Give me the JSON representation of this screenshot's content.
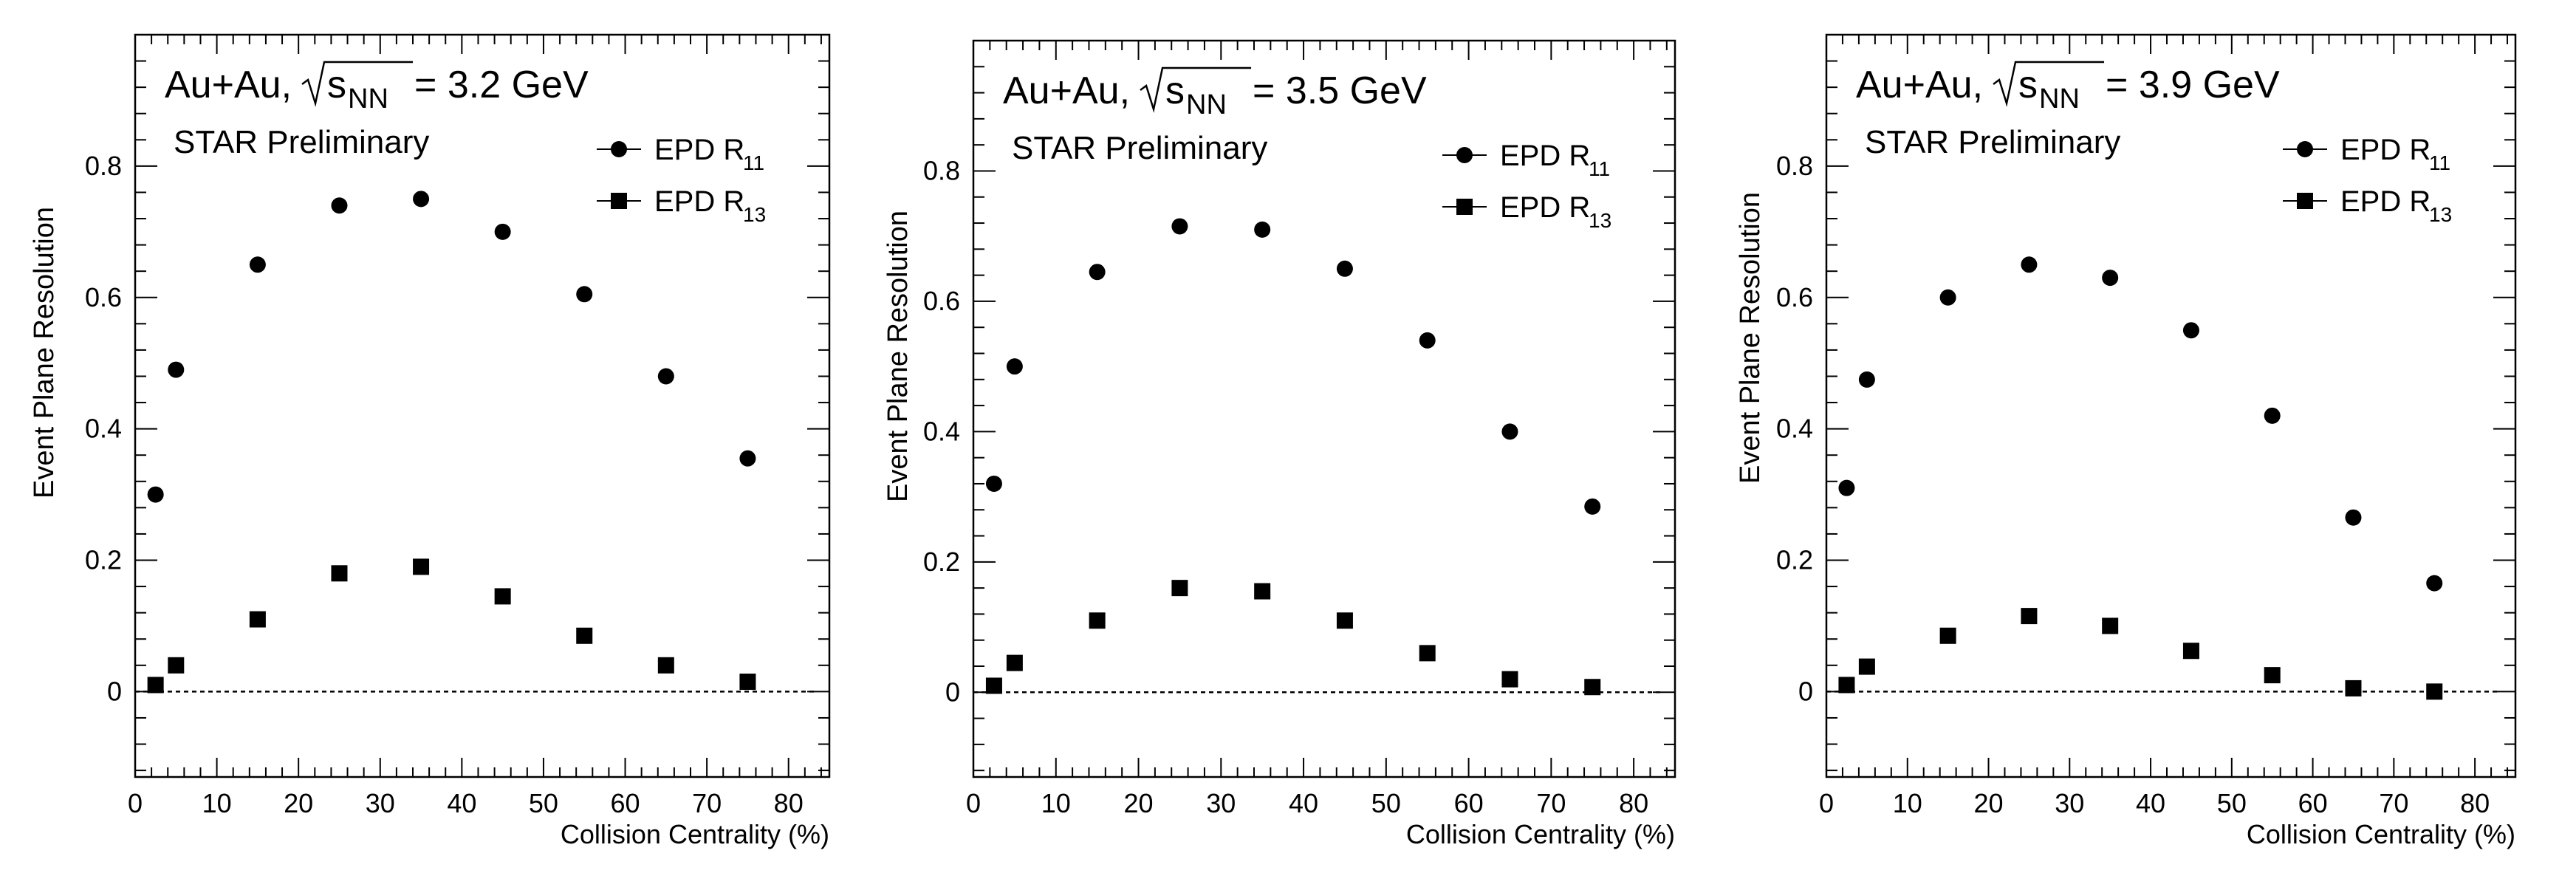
{
  "chart_data": [
    {
      "type": "scatter",
      "system": "Au+Au,",
      "energy_label": "= 3.2 GeV",
      "subtitle": "STAR Preliminary",
      "xlabel": "Collision Centrality (%)",
      "ylabel": "Event Plane Resolution",
      "xlim": [
        0,
        85
      ],
      "ylim": [
        -0.13,
        1.0
      ],
      "x_ticks": [
        0,
        10,
        20,
        30,
        40,
        50,
        60,
        70,
        80
      ],
      "y_ticks": [
        0,
        0.2,
        0.4,
        0.6,
        0.8
      ],
      "x_tick_labels": [
        "0",
        "10",
        "20",
        "30",
        "40",
        "50",
        "60",
        "70",
        "80"
      ],
      "y_tick_labels": [
        "0",
        "0.2",
        "0.4",
        "0.6",
        "0.8"
      ],
      "x": [
        2.5,
        5,
        15,
        25,
        35,
        45,
        55,
        65,
        75
      ],
      "series": [
        {
          "name": "EPD R11",
          "legend_main": "EPD R",
          "legend_sub": "11",
          "marker": "circle",
          "values": [
            0.3,
            0.49,
            0.65,
            0.74,
            0.75,
            0.7,
            0.605,
            0.48,
            0.355
          ]
        },
        {
          "name": "EPD R13",
          "legend_main": "EPD R",
          "legend_sub": "13",
          "marker": "square",
          "values": [
            0.01,
            0.04,
            0.11,
            0.18,
            0.19,
            0.145,
            0.085,
            0.04,
            0.015
          ]
        }
      ]
    },
    {
      "type": "scatter",
      "system": "Au+Au,",
      "energy_label": "= 3.5 GeV",
      "subtitle": "STAR Preliminary",
      "xlabel": "Collision Centrality (%)",
      "ylabel": "Event Plane Resolution",
      "xlim": [
        0,
        85
      ],
      "ylim": [
        -0.13,
        1.0
      ],
      "x_ticks": [
        0,
        10,
        20,
        30,
        40,
        50,
        60,
        70,
        80
      ],
      "y_ticks": [
        0,
        0.2,
        0.4,
        0.6,
        0.8
      ],
      "x_tick_labels": [
        "0",
        "10",
        "20",
        "30",
        "40",
        "50",
        "60",
        "70",
        "80"
      ],
      "y_tick_labels": [
        "0",
        "0.2",
        "0.4",
        "0.6",
        "0.8"
      ],
      "x": [
        2.5,
        5,
        15,
        25,
        35,
        45,
        55,
        65,
        75
      ],
      "series": [
        {
          "name": "EPD R11",
          "legend_main": "EPD R",
          "legend_sub": "11",
          "marker": "circle",
          "values": [
            0.32,
            0.5,
            0.645,
            0.715,
            0.71,
            0.65,
            0.54,
            0.4,
            0.285
          ]
        },
        {
          "name": "EPD R13",
          "legend_main": "EPD R",
          "legend_sub": "13",
          "marker": "square",
          "values": [
            0.01,
            0.045,
            0.11,
            0.16,
            0.155,
            0.11,
            0.06,
            0.02,
            0.008
          ]
        }
      ]
    },
    {
      "type": "scatter",
      "system": "Au+Au,",
      "energy_label": "= 3.9 GeV",
      "subtitle": "STAR Preliminary",
      "xlabel": "Collision Centrality (%)",
      "ylabel": "Event Plane Resolution",
      "xlim": [
        0,
        85
      ],
      "ylim": [
        -0.13,
        1.0
      ],
      "x_ticks": [
        0,
        10,
        20,
        30,
        40,
        50,
        60,
        70,
        80
      ],
      "y_ticks": [
        0,
        0.2,
        0.4,
        0.6,
        0.8
      ],
      "x_tick_labels": [
        "0",
        "10",
        "20",
        "30",
        "40",
        "50",
        "60",
        "70",
        "80"
      ],
      "y_tick_labels": [
        "0",
        "0.2",
        "0.4",
        "0.6",
        "0.8"
      ],
      "x": [
        2.5,
        5,
        15,
        25,
        35,
        45,
        55,
        65,
        75
      ],
      "series": [
        {
          "name": "EPD R11",
          "legend_main": "EPD R",
          "legend_sub": "11",
          "marker": "circle",
          "values": [
            0.31,
            0.475,
            0.6,
            0.65,
            0.63,
            0.55,
            0.42,
            0.265,
            0.165
          ]
        },
        {
          "name": "EPD R13",
          "legend_main": "EPD R",
          "legend_sub": "13",
          "marker": "square",
          "values": [
            0.01,
            0.038,
            0.085,
            0.115,
            0.1,
            0.062,
            0.025,
            0.005,
            0.0
          ]
        }
      ]
    }
  ],
  "sqrt_s_label": "s",
  "sqrt_s_sub": "NN"
}
